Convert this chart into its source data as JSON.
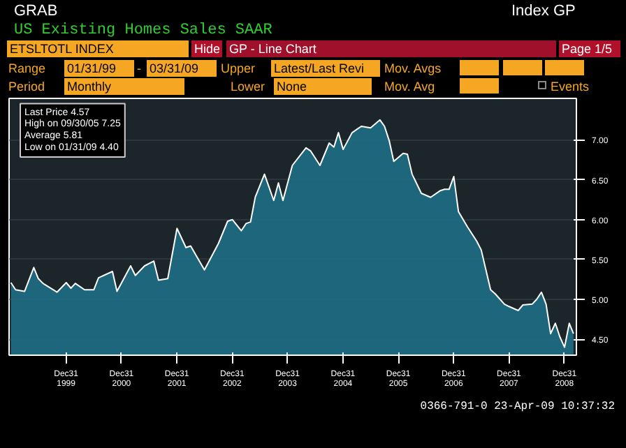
{
  "chart_data": {
    "type": "area",
    "title": "US Existing Homes Sales SAAR",
    "x": [
      "1999-01",
      "1999-02",
      "1999-04",
      "1999-06",
      "1999-07",
      "1999-08",
      "1999-11",
      "2000-01",
      "2000-02",
      "2000-03",
      "2000-05",
      "2000-07",
      "2000-08",
      "2000-11",
      "2000-12",
      "2001-03",
      "2001-04",
      "2001-06",
      "2001-08",
      "2001-09",
      "2001-11",
      "2002-01",
      "2002-03",
      "2002-04",
      "2002-07",
      "2002-10",
      "2002-12",
      "2003-01",
      "2003-03",
      "2003-04",
      "2003-05",
      "2003-06",
      "2003-08",
      "2003-10",
      "2003-11",
      "2003-12",
      "2004-02",
      "2004-05",
      "2004-06",
      "2004-08",
      "2004-10",
      "2004-11",
      "2004-12",
      "2005-01",
      "2005-03",
      "2005-05",
      "2005-07",
      "2005-09",
      "2005-10",
      "2005-11",
      "2005-12",
      "2006-02",
      "2006-03",
      "2006-04",
      "2006-06",
      "2006-08",
      "2006-10",
      "2006-11",
      "2006-12",
      "2007-01",
      "2007-02",
      "2007-04",
      "2007-06",
      "2007-07",
      "2007-09",
      "2007-10",
      "2007-12",
      "2008-01",
      "2008-03",
      "2008-04",
      "2008-06",
      "2008-07",
      "2008-08",
      "2008-09",
      "2008-10",
      "2008-11",
      "2008-12",
      "2009-01",
      "2009-02",
      "2009-03"
    ],
    "series": [
      {
        "color": "#1e6e85",
        "values": [
          5.21,
          5.12,
          5.1,
          5.4,
          5.26,
          5.2,
          5.09,
          5.21,
          5.14,
          5.2,
          5.12,
          5.12,
          5.27,
          5.35,
          5.1,
          5.42,
          5.3,
          5.42,
          5.48,
          5.24,
          5.26,
          5.89,
          5.65,
          5.67,
          5.37,
          5.7,
          5.98,
          6.0,
          5.86,
          5.95,
          5.97,
          6.28,
          6.57,
          6.24,
          6.46,
          6.24,
          6.68,
          6.9,
          6.86,
          6.68,
          6.96,
          6.91,
          7.09,
          6.88,
          7.09,
          7.17,
          7.15,
          7.25,
          7.17,
          6.99,
          6.73,
          6.83,
          6.82,
          6.57,
          6.33,
          6.28,
          6.36,
          6.38,
          6.38,
          6.54,
          6.1,
          5.91,
          5.73,
          5.62,
          5.12,
          5.07,
          4.94,
          4.91,
          4.86,
          4.93,
          4.94,
          5.0,
          5.09,
          4.94,
          4.57,
          4.7,
          4.53,
          4.4,
          4.7,
          4.57
        ]
      }
    ],
    "xlim": [
      "1998-12-20",
      "2009-03-20"
    ],
    "xticks": [
      {
        "value": "1999-12-31",
        "label": "Dec31\n1999"
      },
      {
        "value": "2000-12-31",
        "label": "Dec31\n2000"
      },
      {
        "value": "2001-12-31",
        "label": "Dec31\n2001"
      },
      {
        "value": "2002-12-31",
        "label": "Dec31\n2002"
      },
      {
        "value": "2003-12-31",
        "label": "Dec31\n2003"
      },
      {
        "value": "2004-12-31",
        "label": "Dec31\n2004"
      },
      {
        "value": "2005-12-31",
        "label": "Dec31\n2005"
      },
      {
        "value": "2006-12-31",
        "label": "Dec31\n2006"
      },
      {
        "value": "2007-12-31",
        "label": "Dec31\n2007"
      },
      {
        "value": "2008-12-31",
        "label": "Dec31\n2008"
      }
    ],
    "ylim": [
      4.3,
      7.52
    ],
    "yticks": [
      {
        "value": 4.5,
        "label": "4.50"
      },
      {
        "value": 5.0,
        "label": "5.00"
      },
      {
        "value": 5.5,
        "label": "5.50"
      },
      {
        "value": 6.0,
        "label": "6.00"
      },
      {
        "value": 6.5,
        "label": "6.50"
      },
      {
        "value": 7.0,
        "label": "7.00"
      }
    ],
    "grid": "y",
    "annotations": [
      "GRAB",
      "Index GP",
      "ETSLTOTL INDEX",
      "Hide",
      "GP - Line Chart",
      "Page 1/5",
      "Range",
      "01/31/99",
      "-",
      "03/31/09",
      "Upper",
      "Latest/Last Revi",
      "Mov. Avgs",
      "Period",
      "Monthly",
      "Lower",
      "None",
      "Mov. Avg",
      "Events",
      "Last Price 4.57",
      "High on 09/30/05 7.25",
      "Average 5.81",
      "Low on 01/31/09 4.40",
      "0366-791-0 23-Apr-09 10:37:32"
    ]
  }
}
